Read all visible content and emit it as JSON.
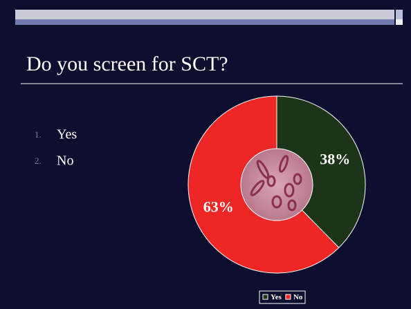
{
  "slide": {
    "title": "Do you screen for SCT?",
    "list": [
      {
        "number": "1.",
        "text": "Yes"
      },
      {
        "number": "2.",
        "text": "No"
      }
    ]
  },
  "chart_data": {
    "type": "pie",
    "categories": [
      "Yes",
      "No"
    ],
    "values": [
      38,
      63
    ],
    "value_labels": [
      "38%",
      "63%"
    ],
    "colors": [
      "#1c3518",
      "#ee2624"
    ],
    "legend": "bottom"
  }
}
